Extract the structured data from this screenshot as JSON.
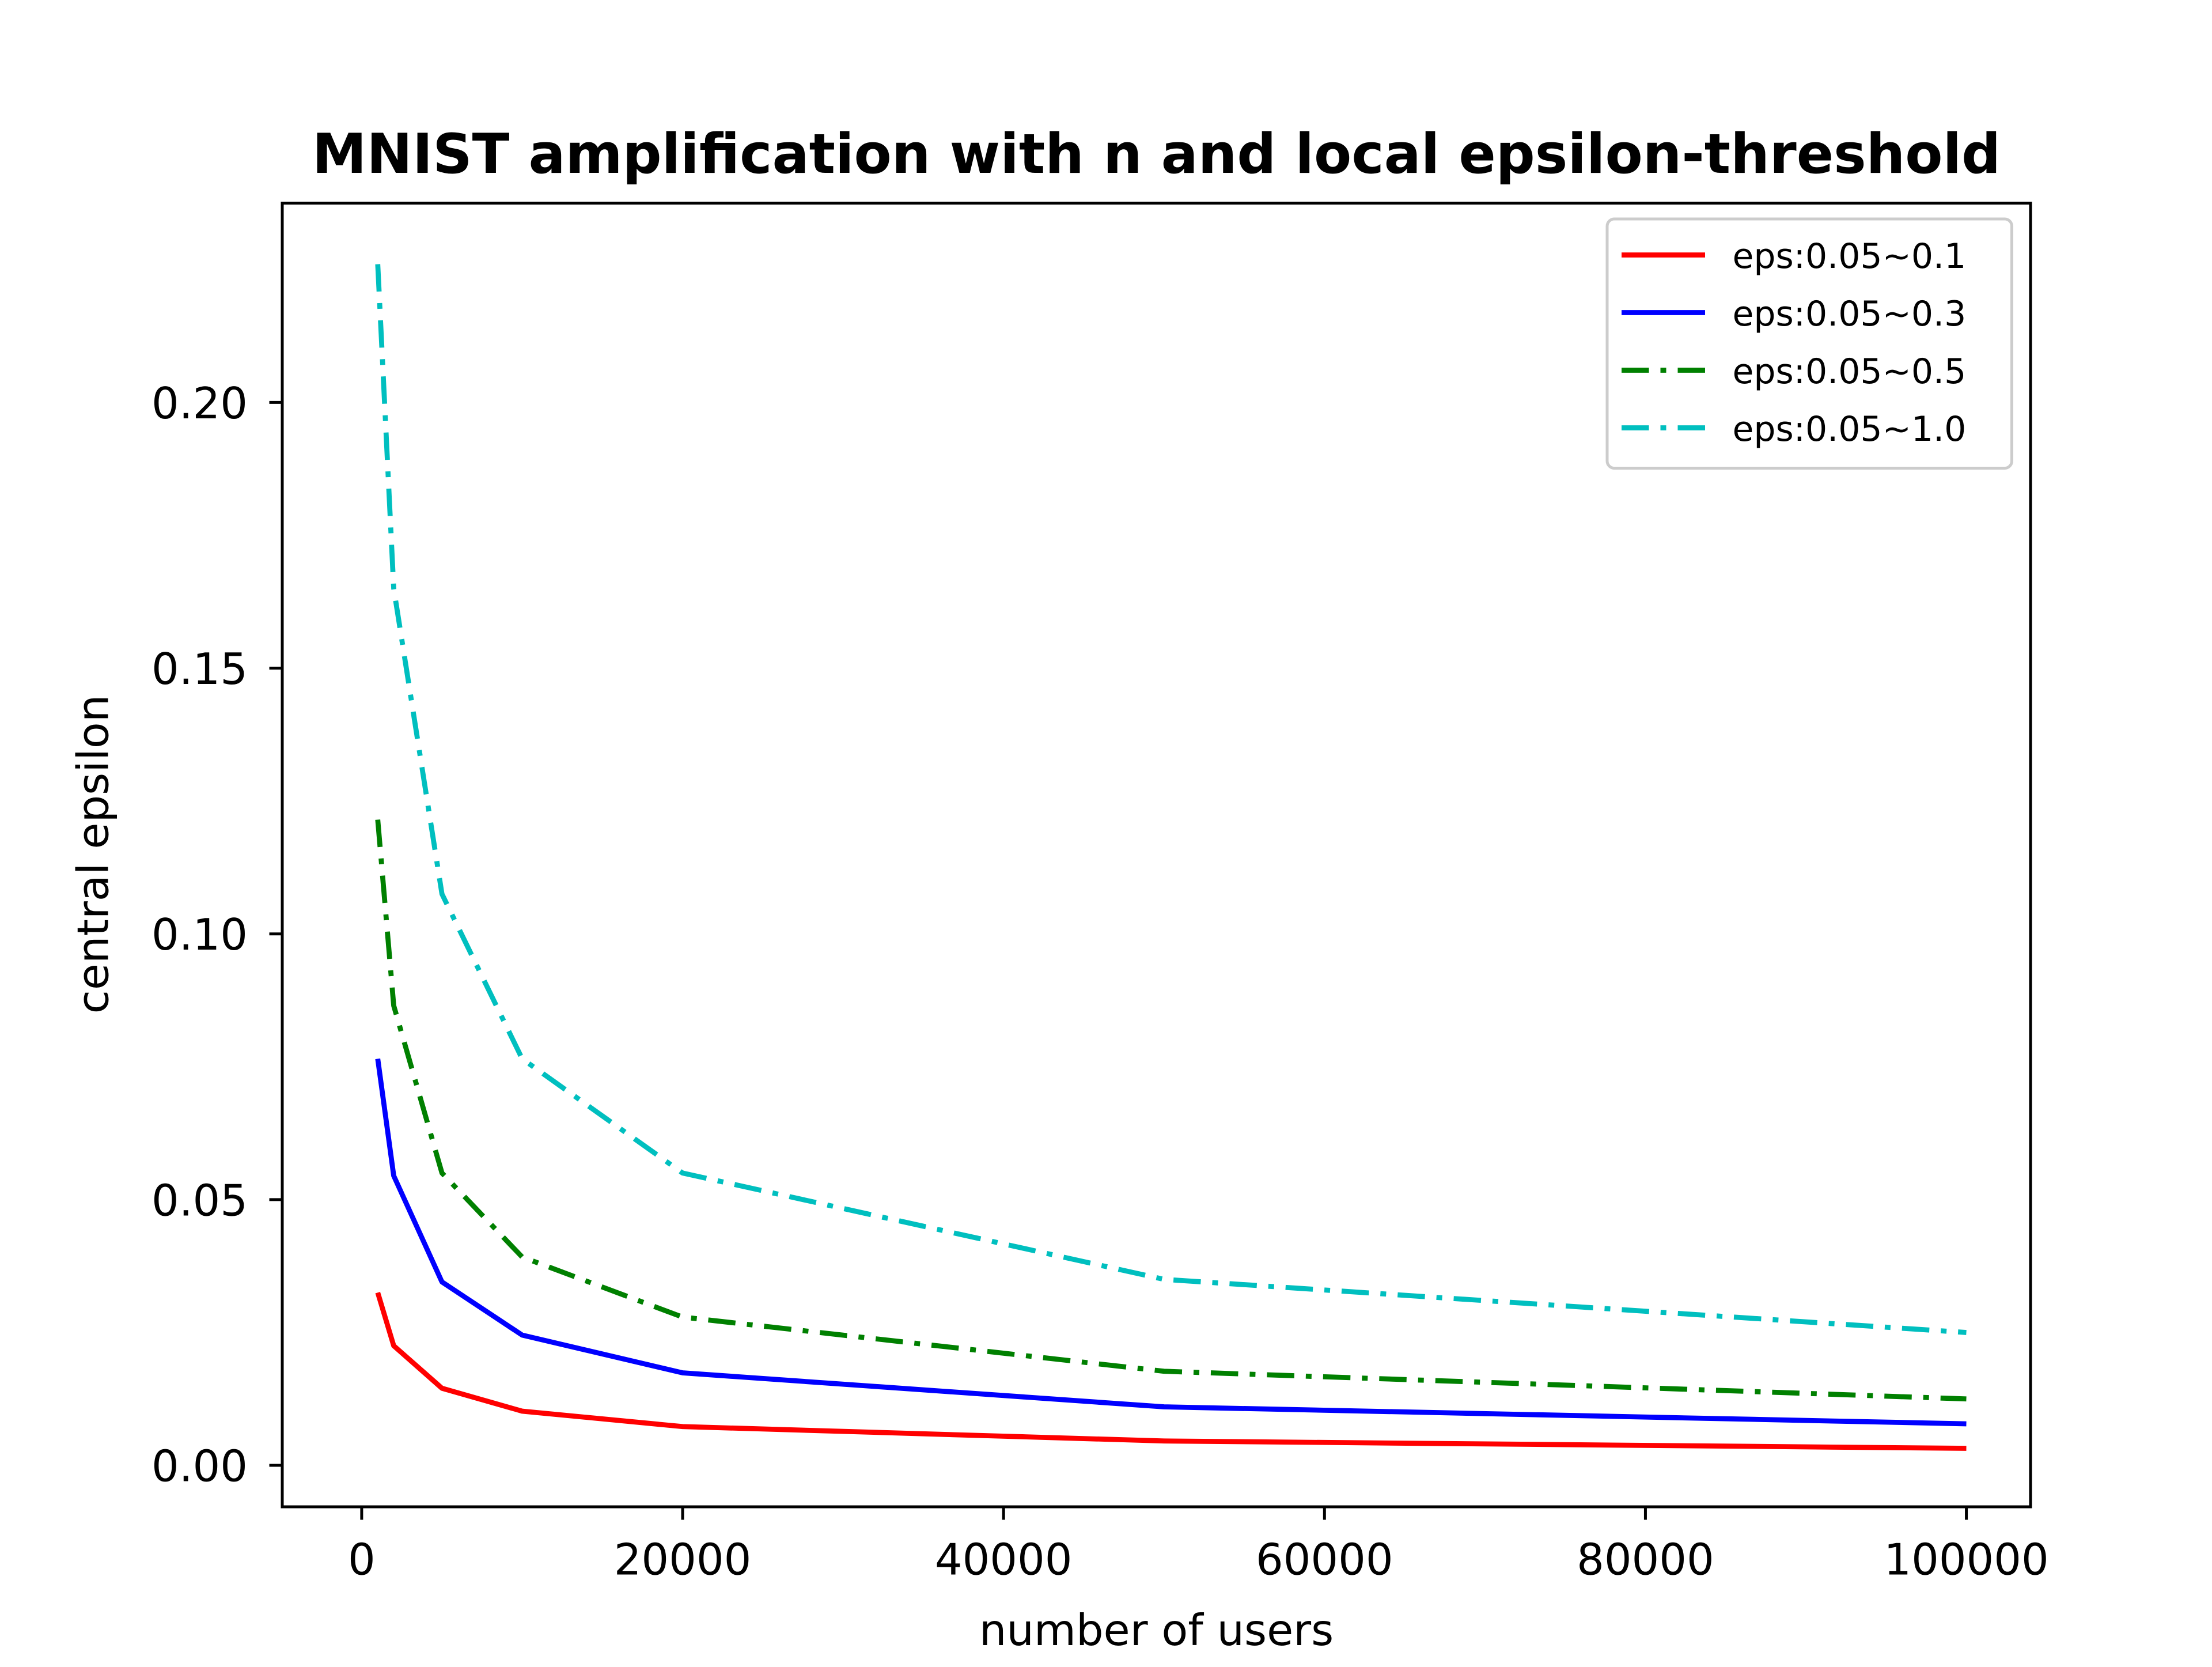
{
  "chart_data": {
    "type": "line",
    "title": "MNIST amplification with n and local epsilon-threshold",
    "xlabel": "number of users",
    "ylabel": "central epsilon",
    "xlim": [
      -4950,
      104000
    ],
    "ylim": [
      -0.0078,
      0.2375
    ],
    "x_ticks": [
      0,
      20000,
      40000,
      60000,
      80000,
      100000
    ],
    "y_ticks": [
      0.0,
      0.05,
      0.1,
      0.15,
      0.2
    ],
    "x_tick_labels": [
      "0",
      "20000",
      "40000",
      "60000",
      "80000",
      "100000"
    ],
    "y_tick_labels": [
      "0.00",
      "0.05",
      "0.10",
      "0.15",
      "0.20"
    ],
    "grid": false,
    "legend_position": "top-right",
    "x": [
      1000,
      2000,
      5000,
      10000,
      20000,
      50000,
      100000
    ],
    "series": [
      {
        "name": "eps:0.05~0.1",
        "color": "#ff0000",
        "style": "solid",
        "values": [
          0.0325,
          0.0225,
          0.0145,
          0.0102,
          0.0073,
          0.0046,
          0.0032
        ]
      },
      {
        "name": "eps:0.05~0.3",
        "color": "#0000ff",
        "style": "solid",
        "values": [
          0.0765,
          0.0545,
          0.0345,
          0.0245,
          0.0174,
          0.011,
          0.0078
        ]
      },
      {
        "name": "eps:0.05~0.5",
        "color": "#008000",
        "style": "dashdot",
        "values": [
          0.1215,
          0.0865,
          0.055,
          0.0392,
          0.0279,
          0.0177,
          0.0125
        ]
      },
      {
        "name": "eps:0.05~1.0",
        "color": "#00bfbf",
        "style": "dashdot",
        "values": [
          0.226,
          0.165,
          0.1075,
          0.0765,
          0.055,
          0.035,
          0.025
        ]
      }
    ]
  }
}
